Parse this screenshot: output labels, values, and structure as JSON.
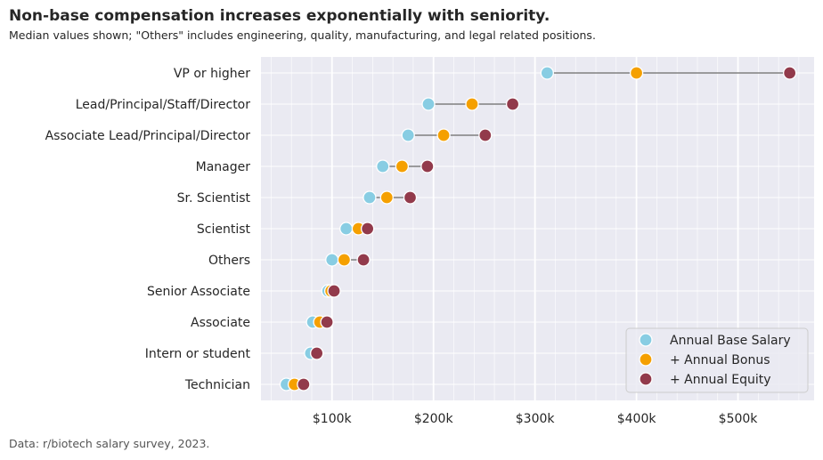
{
  "title": "Non-base compensation increases exponentially with seniority.",
  "subtitle": "Median values shown; \"Others\" includes engineering, quality, manufacturing, and legal related positions.",
  "source": "Data: r/biotech salary survey, 2023.",
  "colors": {
    "background": "#eaeaf2",
    "grid": "#ffffff",
    "connector": "#808080",
    "base": "#88cde3",
    "bonus": "#f5a000",
    "equity": "#923a4b"
  },
  "chart_data": {
    "type": "dot-plot",
    "xlim": [
      30000,
      575000
    ],
    "x_ticks": [
      100000,
      200000,
      300000,
      400000,
      500000
    ],
    "x_tick_labels": [
      "$100k",
      "$200k",
      "$300k",
      "$400k",
      "$500k"
    ],
    "legend_position": "bottom-right",
    "categories": [
      "VP or higher",
      "Lead/Principal/Staff/Director",
      "Associate Lead/Principal/Director",
      "Manager",
      "Sr. Scientist",
      "Scientist",
      "Others",
      "Senior Associate",
      "Associate",
      "Intern or student",
      "Technician"
    ],
    "series": [
      {
        "name": "Annual Base Salary",
        "color_key": "base",
        "values": [
          312000,
          195000,
          175000,
          150000,
          137000,
          114000,
          100000,
          96000,
          81000,
          79000,
          55000
        ]
      },
      {
        "name": "+ Annual Bonus",
        "color_key": "bonus",
        "values": [
          400000,
          238000,
          210000,
          169000,
          154000,
          126000,
          112000,
          99000,
          88000,
          85000,
          63000
        ]
      },
      {
        "name": "+ Annual Equity",
        "color_key": "equity",
        "values": [
          551000,
          278000,
          251000,
          194000,
          177000,
          135000,
          131000,
          102000,
          95000,
          85000,
          72000
        ]
      }
    ]
  }
}
